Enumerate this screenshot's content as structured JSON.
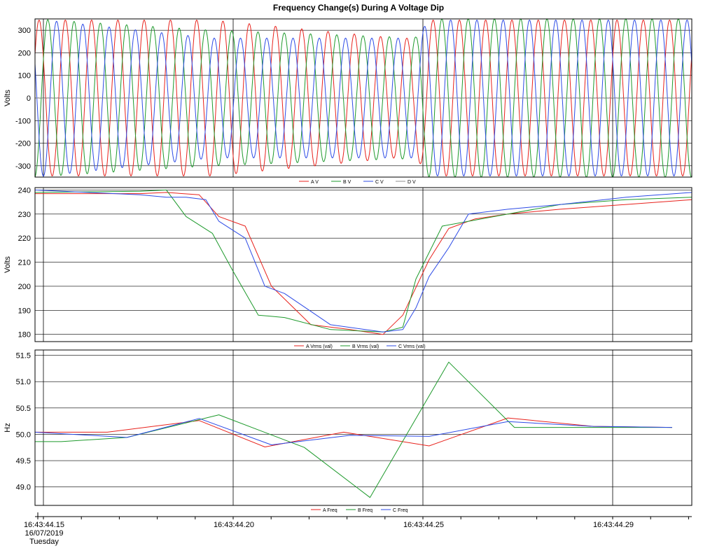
{
  "title": "Frequency Change(s) During A Voltage Dip",
  "x_axis": {
    "ticks": [
      "16:43:44.15",
      "16:43:44.20",
      "16:43:44.25",
      "16:43:44.29"
    ],
    "date": "16/07/2019",
    "weekday": "Tuesday"
  },
  "colors": {
    "A": "#e8221c",
    "B": "#1e9a2c",
    "C": "#2d4be6",
    "D": "#8c8c8c"
  },
  "chart_data": [
    {
      "type": "line",
      "title": "",
      "ylabel": "Volts",
      "ylim": [
        -350,
        350
      ],
      "yticks": [
        300,
        200,
        100,
        0,
        -100,
        -200,
        -300
      ],
      "xlim": [
        0,
        1
      ],
      "series": [
        {
          "name": "A V",
          "kind": "sine",
          "phase": 0
        },
        {
          "name": "B V",
          "kind": "sine",
          "phase": -120
        },
        {
          "name": "C V",
          "kind": "sine",
          "phase": 120
        },
        {
          "name": "D V",
          "kind": "flat",
          "value": 0
        }
      ],
      "amplitude_envelope": {
        "t": [
          0.0,
          0.27,
          0.55,
          0.58,
          0.6,
          1.0
        ],
        "A": [
          345,
          345,
          265,
          265,
          345,
          345
        ],
        "B": [
          350,
          300,
          270,
          270,
          350,
          350
        ],
        "C": [
          350,
          265,
          265,
          265,
          345,
          345
        ]
      },
      "cycles": 25,
      "legend_placement": "bottom-center"
    },
    {
      "type": "line",
      "title": "",
      "ylabel": "Volts",
      "ylim": [
        177,
        241
      ],
      "yticks": [
        240,
        230,
        220,
        210,
        200,
        190,
        180
      ],
      "xlim": [
        0,
        1
      ],
      "series": [
        {
          "name": "A Vrms (val)",
          "t": [
            0.0,
            0.16,
            0.2,
            0.25,
            0.28,
            0.32,
            0.36,
            0.42,
            0.48,
            0.53,
            0.56,
            0.6,
            0.63,
            0.67,
            0.72,
            0.8,
            0.9,
            1.0
          ],
          "values": [
            238.5,
            238.5,
            239,
            238,
            229,
            225,
            200,
            184,
            182,
            180,
            188,
            211,
            224,
            228,
            230,
            232,
            234,
            236
          ]
        },
        {
          "name": "B Vrms (val)",
          "t": [
            0.0,
            0.16,
            0.2,
            0.23,
            0.27,
            0.3,
            0.34,
            0.38,
            0.45,
            0.53,
            0.56,
            0.58,
            0.62,
            0.66,
            0.72,
            0.8,
            0.9,
            1.0
          ],
          "values": [
            239,
            239.5,
            240,
            229,
            222,
            207,
            188,
            187,
            182,
            181,
            183,
            203,
            225,
            227,
            230,
            234,
            236,
            237
          ]
        },
        {
          "name": "C Vrms (val)",
          "t": [
            0.0,
            0.16,
            0.2,
            0.23,
            0.26,
            0.28,
            0.32,
            0.35,
            0.38,
            0.45,
            0.53,
            0.56,
            0.58,
            0.6,
            0.63,
            0.66,
            0.72,
            0.8,
            0.9,
            1.0
          ],
          "values": [
            240,
            238,
            237,
            237,
            236,
            227,
            220,
            200,
            197,
            184,
            181,
            182,
            191,
            204,
            216,
            230,
            232,
            234,
            237,
            239
          ]
        }
      ],
      "legend_placement": "bottom-center"
    },
    {
      "type": "line",
      "title": "",
      "ylabel": "Hz",
      "ylim": [
        48.65,
        51.6
      ],
      "yticks": [
        "51.5",
        "51.0",
        "50.5",
        "50.0",
        "49.5",
        "49.0"
      ],
      "xlim": [
        0,
        1
      ],
      "series": [
        {
          "name": "A Freq",
          "t": [
            0.0,
            0.11,
            0.25,
            0.35,
            0.47,
            0.6,
            0.72,
            0.85,
            0.97
          ],
          "values": [
            50.04,
            50.04,
            50.26,
            49.76,
            50.04,
            49.78,
            50.31,
            50.15,
            50.13
          ]
        },
        {
          "name": "B Freq",
          "t": [
            0.0,
            0.04,
            0.14,
            0.28,
            0.41,
            0.51,
            0.63,
            0.73,
            0.85,
            0.97
          ],
          "values": [
            49.86,
            49.86,
            49.94,
            50.37,
            49.75,
            48.8,
            51.37,
            50.13,
            50.13,
            50.13
          ]
        },
        {
          "name": "C Freq",
          "t": [
            0.0,
            0.14,
            0.25,
            0.36,
            0.48,
            0.6,
            0.72,
            0.85,
            0.97
          ],
          "values": [
            50.04,
            49.94,
            50.3,
            49.8,
            49.98,
            49.96,
            50.24,
            50.15,
            50.13
          ]
        }
      ],
      "legend_placement": "bottom-center"
    }
  ]
}
